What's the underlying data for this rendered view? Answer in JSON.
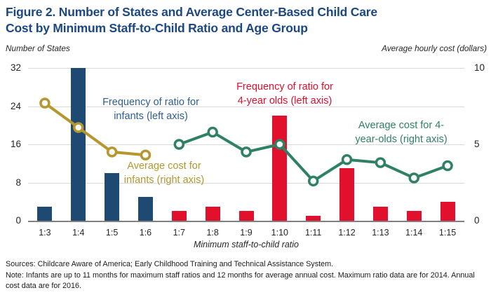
{
  "figure": {
    "title_line1": "Figure 2. Number of States and Average Center-Based Child Care",
    "title_line2": "Cost by Minimum Staff-to-Child Ratio and Age Group",
    "left_axis_caption": "Number of States",
    "right_axis_caption": "Average hourly cost (dollars)",
    "x_axis_title": "Minimum staff-to-child ratio",
    "sources": "Sources: Childcare Aware of America; Early Childhood Training and Technical Assistance System.",
    "note": "Note: Infants are up to 11 months for maximum staff ratios and 12 months for average annual cost. Maximum ratio data are for 2014. Annual cost data are for 2016."
  },
  "annotations": [
    {
      "id": "freq-infants",
      "line1": "Frequency of ratio for",
      "line2": "infants (left axis)",
      "color": "annotation_blue"
    },
    {
      "id": "freq-4yo",
      "line1": "Frequency of ratio for",
      "line2": "4-year olds (left axis)",
      "color": "red"
    },
    {
      "id": "cost-infants",
      "line1": "Average cost for",
      "line2": "infants (right axis)",
      "color": "gold"
    },
    {
      "id": "cost-4yo",
      "line1": "Average cost for 4-",
      "line2": "year-olds (right axis)",
      "color": "teal"
    }
  ],
  "chart_data": {
    "type": "bar+line combo",
    "title": "Figure 2. Number of States and Average Center-Based Child Care Cost by Minimum Staff-to-Child Ratio and Age Group",
    "categories": [
      "1:3",
      "1:4",
      "1:5",
      "1:6",
      "1:7",
      "1:8",
      "1:9",
      "1:10",
      "1:11",
      "1:12",
      "1:13",
      "1:14",
      "1:15"
    ],
    "xlabel": "Minimum staff-to-child ratio",
    "left_axis": {
      "label": "Number of States",
      "min": 0,
      "max": 32,
      "ticks": [
        32,
        24,
        16,
        8,
        0
      ]
    },
    "right_axis": {
      "label": "Average hourly cost (dollars)",
      "min": 0,
      "max": 10,
      "ticks": [
        10,
        5,
        0
      ]
    },
    "grid": true,
    "legend": "in-chart text annotations",
    "bar_series": [
      {
        "name": "Frequency of ratio for infants (left axis)",
        "axis": "left",
        "color": "navy",
        "values": [
          3,
          32,
          10,
          5,
          null,
          null,
          null,
          null,
          null,
          null,
          null,
          null,
          null
        ]
      },
      {
        "name": "Frequency of ratio for 4-year olds (left axis)",
        "axis": "left",
        "color": "red",
        "values": [
          null,
          null,
          null,
          null,
          2,
          3,
          2,
          22,
          1,
          11,
          3,
          2,
          4
        ]
      }
    ],
    "line_series": [
      {
        "name": "Average cost for infants (right axis)",
        "axis": "right",
        "color": "gold",
        "values": [
          7.7,
          6.1,
          4.5,
          4.3,
          null,
          null,
          null,
          null,
          null,
          null,
          null,
          null,
          null
        ]
      },
      {
        "name": "Average cost for 4-year-olds (right axis)",
        "axis": "right",
        "color": "teal",
        "values": [
          null,
          null,
          null,
          null,
          5.0,
          5.8,
          4.5,
          5.0,
          2.6,
          4.0,
          3.8,
          2.8,
          3.6
        ]
      }
    ],
    "colors": {
      "navy": "#1e4973",
      "red": "#e1102d",
      "gold": "#b6962f",
      "teal": "#2f8164",
      "grid": "#d9d9d9",
      "axis_line": "#808080",
      "title": "#1c4882",
      "annotation_blue": "#2d5f94",
      "text": "#262626"
    }
  }
}
